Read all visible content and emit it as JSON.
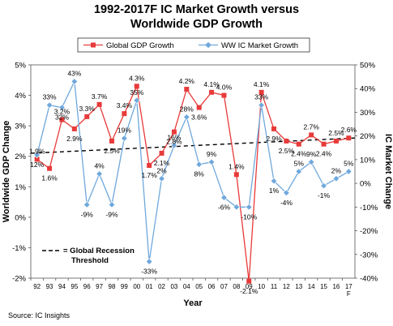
{
  "title_line1": "1992-2017F IC Market Growth versus",
  "title_line2": "Worldwide GDP Growth",
  "source": "Source: IC Insights",
  "chart_data": {
    "type": "line",
    "title": "1992-2017F IC Market Growth versus Worldwide GDP Growth",
    "xlabel": "Year",
    "ylabel_left": "Worldwide GDP Change",
    "ylabel_right": "IC Market Change",
    "categories": [
      "92",
      "93",
      "94",
      "95",
      "96",
      "97",
      "98",
      "99",
      "00",
      "01",
      "02",
      "03",
      "04",
      "05",
      "06",
      "07",
      "08",
      "09",
      "10",
      "11",
      "12",
      "13",
      "14",
      "15",
      "16",
      "17"
    ],
    "last_category_note": "F",
    "y_left": {
      "min": -2,
      "max": 5,
      "step": 1,
      "ticks": [
        "-2%",
        "-1%",
        "0%",
        "1%",
        "2%",
        "3%",
        "4%",
        "5%"
      ]
    },
    "y_right": {
      "min": -40,
      "max": 50,
      "step": 10,
      "ticks": [
        "-40%",
        "-30%",
        "-20%",
        "-10%",
        "0%",
        "10%",
        "20%",
        "30%",
        "40%",
        "50%"
      ]
    },
    "legend_position": "top",
    "series": [
      {
        "name": "Global GDP Growth",
        "axis": "left",
        "color": "#e83a3a",
        "marker": "square",
        "values": [
          1.9,
          1.6,
          3.2,
          2.9,
          3.3,
          3.7,
          2.5,
          3.4,
          4.3,
          1.7,
          2.1,
          2.8,
          4.2,
          3.6,
          4.1,
          4.0,
          1.4,
          -2.1,
          4.1,
          2.9,
          2.5,
          2.4,
          2.7,
          2.4,
          2.5,
          2.6
        ],
        "labels": [
          "1.9%",
          "1.6%",
          "3.2%",
          "2.9%",
          "3.3%",
          "3.7%",
          "2.5%",
          "3.4%",
          "4.3%",
          "1.7%",
          "2.1%",
          "2.8%",
          "4.2%",
          "3.6%",
          "4.1%",
          "4.0%",
          "1.4%",
          "-2.1%",
          "4.1%",
          "2.9%",
          "2.5%",
          "2.4%",
          "2.7%",
          "2.4%",
          "2.5%",
          "2.6%"
        ]
      },
      {
        "name": "WW IC Market Growth",
        "axis": "right",
        "color": "#6fa8dc",
        "marker": "diamond",
        "values": [
          12,
          33,
          32,
          43,
          -9,
          4,
          -9,
          19,
          35,
          -33,
          2,
          16,
          28,
          8,
          9,
          -6,
          -10,
          -10,
          33,
          1,
          -4,
          5,
          9,
          -1,
          2,
          5
        ],
        "labels": [
          "12%",
          "33%",
          "32%",
          "43%",
          "-9%",
          "4%",
          "-9%",
          "19%",
          "35%",
          "-33%",
          "2%",
          "16%",
          "28%",
          "8%",
          "9%",
          "-6%",
          "",
          "-10%",
          "33%",
          "1%",
          "-4%",
          "5%",
          "9%",
          "-1%",
          "2%",
          "5%"
        ]
      }
    ],
    "reference_lines": [
      {
        "name": "Global Recession Threshold",
        "axis": "left",
        "y_start": 2.1,
        "y_end": 2.6,
        "style": "dashed"
      }
    ],
    "annotation_line1": "= Global Recession",
    "annotation_line2": "Threshold"
  }
}
